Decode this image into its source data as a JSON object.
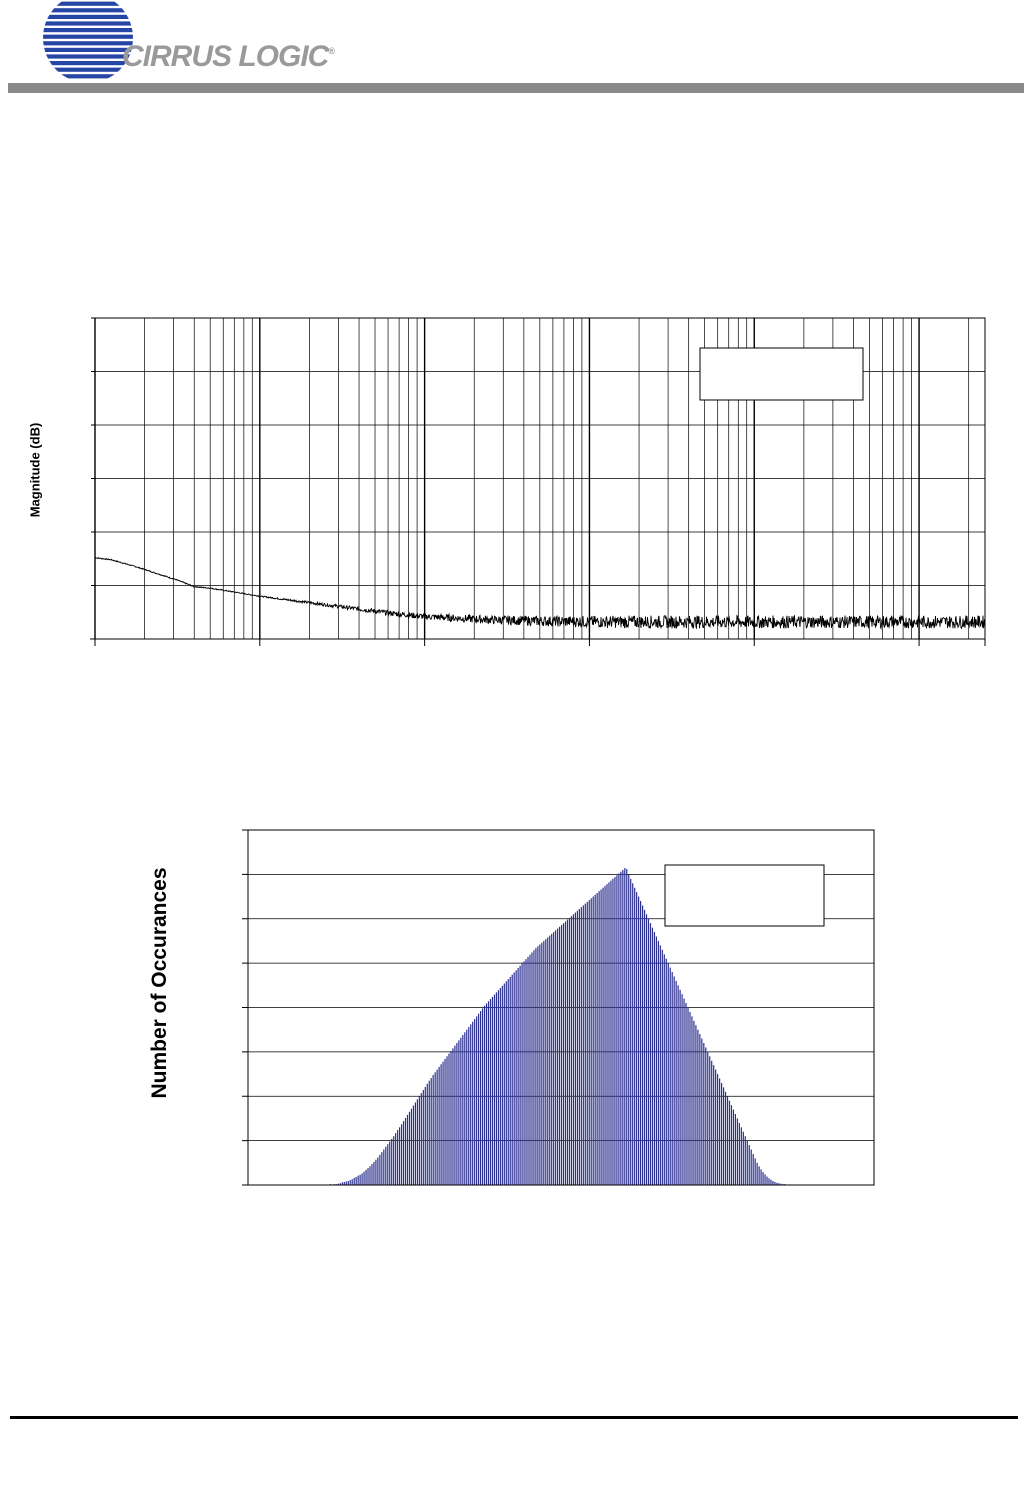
{
  "brand": {
    "name": "CIRRUS LOGIC",
    "mark": "®"
  },
  "colors": {
    "header_bar": "#8a8a8a",
    "logo_blue": "#2646a6",
    "brand_text": "#9a9a9a",
    "hist_bar": "#2b2f8f"
  },
  "chart_data": [
    {
      "type": "line",
      "title": "",
      "xlabel": "",
      "ylabel": "Magnitude (dB)",
      "xscale": "log",
      "x_decades": 5.4,
      "grid": true,
      "legend": {
        "placement": "top-right",
        "text": ""
      },
      "series": [
        {
          "x_decade_offset": [
            0.0,
            0.1,
            0.25,
            0.4,
            0.5,
            0.6,
            0.7,
            0.8,
            0.9,
            1.0,
            1.2,
            1.4,
            1.6,
            1.8,
            2.0,
            2.4,
            2.8,
            3.2,
            3.6,
            4.0,
            4.4,
            4.8,
            5.2,
            5.4
          ],
          "y_grid_units": [
            1.52,
            1.48,
            1.35,
            1.2,
            1.1,
            0.98,
            0.95,
            0.9,
            0.85,
            0.8,
            0.72,
            0.64,
            0.56,
            0.48,
            0.42,
            0.36,
            0.33,
            0.32,
            0.32,
            0.32,
            0.32,
            0.32,
            0.32,
            0.32
          ]
        }
      ]
    },
    {
      "type": "bar",
      "title": "",
      "xlabel": "",
      "ylabel": "Number of Occurances",
      "grid": true,
      "legend": {
        "placement": "top-right",
        "text": ""
      },
      "series": [
        {
          "values": [
            0.01,
            0,
            0,
            0.01,
            0.01,
            0.02,
            0.01,
            0.02,
            0.02,
            0.03,
            0.04,
            0.06,
            0.07,
            0.08,
            0.09,
            0.11,
            0.13,
            0.16,
            0.18,
            0.21,
            0.23,
            0.26,
            0.3,
            0.34,
            0.38,
            0.42,
            0.47,
            0.52,
            0.57,
            0.62,
            0.68,
            0.74,
            0.8,
            0.86,
            0.92,
            0.98,
            1.04,
            1.1,
            1.17,
            1.24,
            1.3,
            1.37,
            1.44,
            1.51,
            1.58,
            1.65,
            1.72,
            1.79,
            1.86,
            1.93,
            2.0,
            2.07,
            2.14,
            2.21,
            2.28,
            2.35,
            2.41,
            2.48,
            2.54,
            2.6,
            2.66,
            2.72,
            2.78,
            2.84,
            2.9,
            2.96,
            3.02,
            3.08,
            3.14,
            3.2,
            3.26,
            3.32,
            3.38,
            3.44,
            3.5,
            3.56,
            3.62,
            3.68,
            3.74,
            3.8,
            3.86,
            3.92,
            3.98,
            4.04,
            4.09,
            4.14,
            4.19,
            4.24,
            4.29,
            4.34,
            4.39,
            4.44,
            4.49,
            4.54,
            4.59,
            4.64,
            4.69,
            4.74,
            4.79,
            4.84,
            4.89,
            4.94,
            4.99,
            5.04,
            5.09,
            5.14,
            5.19,
            5.24,
            5.29,
            5.34,
            5.38,
            5.42,
            5.46,
            5.5,
            5.54,
            5.58,
            5.62,
            5.66,
            5.7,
            5.74,
            5.78,
            5.82,
            5.86,
            5.9,
            5.94,
            5.98,
            6.02,
            6.06,
            6.1,
            6.14,
            6.18,
            6.22,
            6.26,
            6.3,
            6.34,
            6.38,
            6.42,
            6.46,
            6.5,
            6.54,
            6.58,
            6.62,
            6.66,
            6.7,
            6.74,
            6.78,
            6.82,
            6.86,
            6.9,
            6.94,
            6.98,
            7.02,
            7.06,
            7.1,
            7.14,
            7.12,
            7.0,
            6.9,
            6.8,
            6.7,
            6.6,
            6.5,
            6.4,
            6.3,
            6.2,
            6.1,
            6.0,
            5.9,
            5.8,
            5.7,
            5.6,
            5.5,
            5.4,
            5.3,
            5.2,
            5.1,
            5.0,
            4.9,
            4.8,
            4.7,
            4.6,
            4.5,
            4.4,
            4.3,
            4.2,
            4.1,
            4.0,
            3.9,
            3.8,
            3.7,
            3.6,
            3.5,
            3.4,
            3.3,
            3.2,
            3.1,
            3.0,
            2.9,
            2.8,
            2.7,
            2.6,
            2.5,
            2.4,
            2.3,
            2.2,
            2.1,
            2.0,
            1.9,
            1.8,
            1.7,
            1.6,
            1.5,
            1.4,
            1.3,
            1.2,
            1.1,
            1.0,
            0.9,
            0.8,
            0.7,
            0.6,
            0.5,
            0.42,
            0.35,
            0.29,
            0.24,
            0.19,
            0.15,
            0.12,
            0.09,
            0.07,
            0.05,
            0.04,
            0.03,
            0.02,
            0.02,
            0.01,
            0.01,
            0,
            0.01,
            0,
            0,
            0.01
          ]
        }
      ]
    }
  ]
}
